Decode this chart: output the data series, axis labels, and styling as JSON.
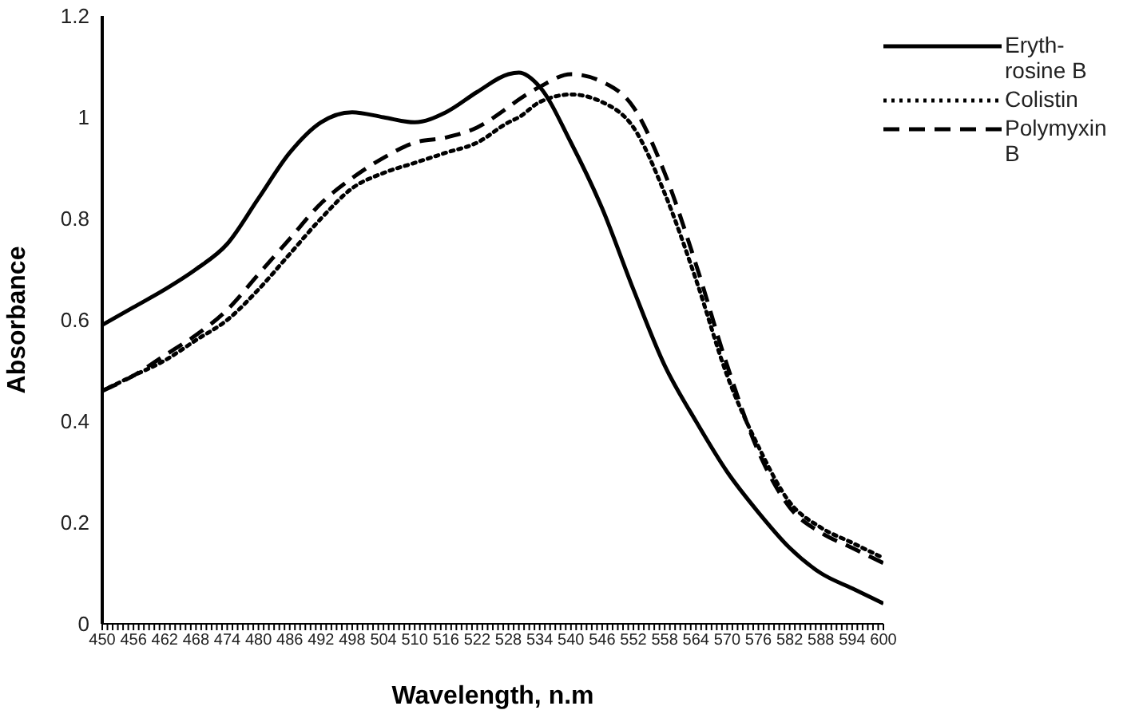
{
  "chart_data": {
    "type": "line",
    "xlabel": "Wavelength, n.m",
    "ylabel": "Absorbance",
    "x": [
      450,
      456,
      462,
      468,
      474,
      480,
      486,
      492,
      498,
      504,
      510,
      516,
      522,
      528,
      530,
      534,
      540,
      546,
      552,
      558,
      564,
      570,
      576,
      582,
      588,
      594,
      600
    ],
    "series": [
      {
        "name": "Eryth-rosine B",
        "color": "#000000",
        "line_style": "solid",
        "values": [
          0.59,
          0.625,
          0.66,
          0.7,
          0.75,
          0.84,
          0.93,
          0.99,
          1.01,
          1.0,
          0.99,
          1.01,
          1.05,
          1.085,
          1.088,
          1.06,
          0.95,
          0.82,
          0.66,
          0.51,
          0.4,
          0.3,
          0.22,
          0.15,
          0.1,
          0.07,
          0.04
        ]
      },
      {
        "name": "Colistin",
        "color": "#000000",
        "line_style": "dotted",
        "values": [
          0.46,
          0.49,
          0.52,
          0.56,
          0.6,
          0.66,
          0.73,
          0.8,
          0.86,
          0.89,
          0.91,
          0.93,
          0.95,
          0.99,
          1.0,
          1.03,
          1.045,
          1.03,
          0.98,
          0.85,
          0.68,
          0.49,
          0.35,
          0.24,
          0.19,
          0.16,
          0.13
        ]
      },
      {
        "name": "Polymyxin B",
        "color": "#000000",
        "line_style": "dashed",
        "values": [
          0.46,
          0.49,
          0.53,
          0.57,
          0.62,
          0.69,
          0.76,
          0.83,
          0.88,
          0.92,
          0.95,
          0.96,
          0.98,
          1.02,
          1.035,
          1.06,
          1.085,
          1.07,
          1.02,
          0.89,
          0.71,
          0.51,
          0.34,
          0.23,
          0.18,
          0.15,
          0.12
        ]
      }
    ],
    "xlim": [
      450,
      600
    ],
    "xticks": [
      450,
      {
        "value": 451,
        "label": null
      },
      {
        "value": 452,
        "label": null
      },
      {
        "value": 453,
        "label": null
      },
      {
        "value": 454,
        "label": null
      },
      {
        "value": 455,
        "label": null
      },
      456,
      {
        "value": 457,
        "label": null
      },
      {
        "value": 458,
        "label": null
      },
      {
        "value": 459,
        "label": null
      },
      {
        "value": 460,
        "label": null
      },
      {
        "value": 461,
        "label": null
      },
      462,
      {
        "value": 463,
        "label": null
      },
      {
        "value": 464,
        "label": null
      },
      {
        "value": 465,
        "label": null
      },
      {
        "value": 466,
        "label": null
      },
      {
        "value": 467,
        "label": null
      },
      468,
      {
        "value": 469,
        "label": null
      },
      {
        "value": 470,
        "label": null
      },
      {
        "value": 471,
        "label": null
      },
      {
        "value": 472,
        "label": null
      },
      {
        "value": 473,
        "label": null
      },
      474,
      {
        "value": 475,
        "label": null
      },
      {
        "value": 476,
        "label": null
      },
      {
        "value": 477,
        "label": null
      },
      {
        "value": 478,
        "label": null
      },
      {
        "value": 479,
        "label": null
      },
      480,
      {
        "value": 481,
        "label": null
      },
      {
        "value": 482,
        "label": null
      },
      {
        "value": 483,
        "label": null
      },
      {
        "value": 484,
        "label": null
      },
      {
        "value": 485,
        "label": null
      },
      486,
      {
        "value": 487,
        "label": null
      },
      {
        "value": 488,
        "label": null
      },
      {
        "value": 489,
        "label": null
      },
      {
        "value": 490,
        "label": null
      },
      {
        "value": 491,
        "label": null
      },
      492,
      {
        "value": 493,
        "label": null
      },
      {
        "value": 494,
        "label": null
      },
      {
        "value": 495,
        "label": null
      },
      {
        "value": 496,
        "label": null
      },
      {
        "value": 497,
        "label": null
      },
      498,
      {
        "value": 499,
        "label": null
      },
      {
        "value": 500,
        "label": null
      },
      {
        "value": 501,
        "label": null
      },
      {
        "value": 502,
        "label": null
      },
      {
        "value": 503,
        "label": null
      },
      504,
      {
        "value": 505,
        "label": null
      },
      {
        "value": 506,
        "label": null
      },
      {
        "value": 507,
        "label": null
      },
      {
        "value": 508,
        "label": null
      },
      {
        "value": 509,
        "label": null
      },
      510,
      {
        "value": 511,
        "label": null
      },
      {
        "value": 512,
        "label": null
      },
      {
        "value": 513,
        "label": null
      },
      {
        "value": 514,
        "label": null
      },
      {
        "value": 515,
        "label": null
      },
      516,
      {
        "value": 517,
        "label": null
      },
      {
        "value": 518,
        "label": null
      },
      {
        "value": 519,
        "label": null
      },
      {
        "value": 520,
        "label": null
      },
      {
        "value": 521,
        "label": null
      },
      522,
      {
        "value": 523,
        "label": null
      },
      {
        "value": 524,
        "label": null
      },
      {
        "value": 525,
        "label": null
      },
      {
        "value": 526,
        "label": null
      },
      {
        "value": 527,
        "label": null
      },
      528,
      {
        "value": 529,
        "label": null
      },
      {
        "value": 530,
        "label": null
      },
      {
        "value": 531,
        "label": null
      },
      {
        "value": 532,
        "label": null
      },
      {
        "value": 533,
        "label": null
      },
      534,
      {
        "value": 535,
        "label": null
      },
      {
        "value": 536,
        "label": null
      },
      {
        "value": 537,
        "label": null
      },
      {
        "value": 538,
        "label": null
      },
      {
        "value": 539,
        "label": null
      },
      540,
      {
        "value": 541,
        "label": null
      },
      {
        "value": 542,
        "label": null
      },
      {
        "value": 543,
        "label": null
      },
      {
        "value": 544,
        "label": null
      },
      {
        "value": 545,
        "label": null
      },
      546,
      {
        "value": 547,
        "label": null
      },
      {
        "value": 548,
        "label": null
      },
      {
        "value": 549,
        "label": null
      },
      {
        "value": 550,
        "label": null
      },
      {
        "value": 551,
        "label": null
      },
      552,
      {
        "value": 553,
        "label": null
      },
      {
        "value": 554,
        "label": null
      },
      {
        "value": 555,
        "label": null
      },
      {
        "value": 556,
        "label": null
      },
      {
        "value": 557,
        "label": null
      },
      558,
      {
        "value": 559,
        "label": null
      },
      {
        "value": 560,
        "label": null
      },
      {
        "value": 561,
        "label": null
      },
      {
        "value": 562,
        "label": null
      },
      {
        "value": 563,
        "label": null
      },
      564,
      {
        "value": 565,
        "label": null
      },
      {
        "value": 566,
        "label": null
      },
      {
        "value": 567,
        "label": null
      },
      {
        "value": 568,
        "label": null
      },
      {
        "value": 569,
        "label": null
      },
      570,
      {
        "value": 571,
        "label": null
      },
      {
        "value": 572,
        "label": null
      },
      {
        "value": 573,
        "label": null
      },
      {
        "value": 574,
        "label": null
      },
      {
        "value": 575,
        "label": null
      },
      576,
      {
        "value": 577,
        "label": null
      },
      {
        "value": 578,
        "label": null
      },
      {
        "value": 579,
        "label": null
      },
      {
        "value": 580,
        "label": null
      },
      {
        "value": 581,
        "label": null
      },
      582,
      {
        "value": 583,
        "label": null
      },
      {
        "value": 584,
        "label": null
      },
      {
        "value": 585,
        "label": null
      },
      {
        "value": 586,
        "label": null
      },
      {
        "value": 587,
        "label": null
      },
      588,
      {
        "value": 589,
        "label": null
      },
      {
        "value": 590,
        "label": null
      },
      {
        "value": 591,
        "label": null
      },
      {
        "value": 592,
        "label": null
      },
      {
        "value": 593,
        "label": null
      },
      594,
      {
        "value": 595,
        "label": null
      },
      {
        "value": 596,
        "label": null
      },
      {
        "value": 597,
        "label": null
      },
      {
        "value": 598,
        "label": null
      },
      {
        "value": 599,
        "label": null
      },
      600
    ],
    "ylim": [
      0,
      1.2
    ],
    "yticks": [
      0,
      0.2,
      0.4,
      0.6,
      0.8,
      1,
      1.2
    ],
    "grid": false,
    "legend": "top right",
    "marker": "none"
  }
}
